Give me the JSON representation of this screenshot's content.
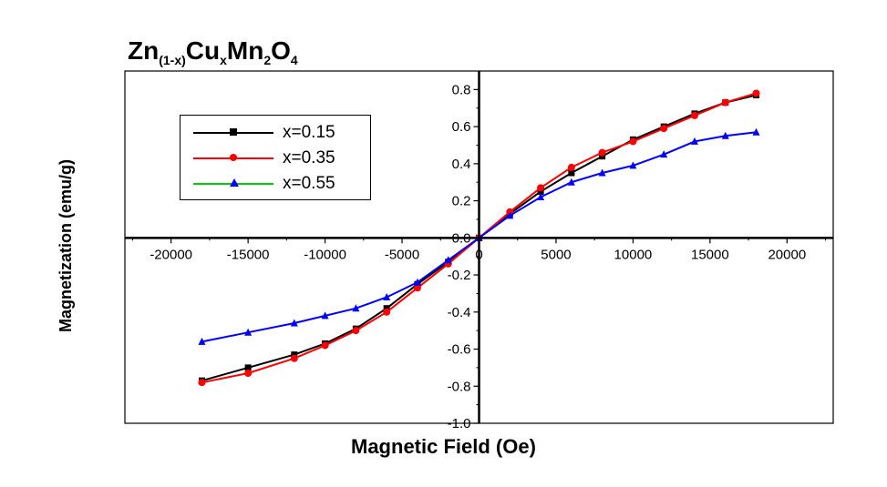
{
  "title": {
    "base1": "Zn",
    "sub1": "(1-x)",
    "base2": "Cu",
    "sub2": "x",
    "base3": "Mn",
    "sub3": "2",
    "base4": "O",
    "sub4": "4"
  },
  "chart_data": {
    "type": "line",
    "xlabel": "Magnetic Field (Oe)",
    "ylabel": "Magnetization (emu/g)",
    "xlim": [
      -23000,
      23000
    ],
    "ylim": [
      -1.0,
      0.9
    ],
    "x_ticks": [
      -20000,
      -15000,
      -10000,
      -5000,
      0,
      5000,
      10000,
      15000,
      20000
    ],
    "y_ticks": [
      -1.0,
      -0.8,
      -0.6,
      -0.4,
      -0.2,
      0.0,
      0.2,
      0.4,
      0.6,
      0.8
    ],
    "x_tick_labels": [
      "-20000",
      "-15000",
      "-10000",
      "-5000",
      "0",
      "5000",
      "10000",
      "15000",
      "20000"
    ],
    "y_tick_labels": [
      "-1.0",
      "-0.8",
      "-0.6",
      "-0.4",
      "-0.2",
      "0.0",
      "0.2",
      "0.4",
      "0.6",
      "0.8"
    ],
    "grid": false,
    "legend_position": "top-left",
    "series": [
      {
        "name": "x=0.15",
        "color": "#000000",
        "marker": "square",
        "x": [
          -18000,
          -15000,
          -12000,
          -10000,
          -8000,
          -6000,
          -4000,
          -2000,
          0,
          2000,
          4000,
          6000,
          8000,
          10000,
          12000,
          14000,
          16000,
          18000
        ],
        "y": [
          -0.77,
          -0.7,
          -0.63,
          -0.57,
          -0.49,
          -0.38,
          -0.25,
          -0.13,
          0.0,
          0.13,
          0.25,
          0.35,
          0.44,
          0.53,
          0.6,
          0.67,
          0.73,
          0.77
        ]
      },
      {
        "name": "x=0.35",
        "color": "#ff0000",
        "marker": "circle",
        "x": [
          -18000,
          -15000,
          -12000,
          -10000,
          -8000,
          -6000,
          -4000,
          -2000,
          0,
          2000,
          4000,
          6000,
          8000,
          10000,
          12000,
          14000,
          16000,
          18000
        ],
        "y": [
          -0.78,
          -0.73,
          -0.65,
          -0.58,
          -0.5,
          -0.4,
          -0.27,
          -0.14,
          0.0,
          0.14,
          0.27,
          0.38,
          0.46,
          0.52,
          0.59,
          0.66,
          0.73,
          0.78
        ]
      },
      {
        "name": "x=0.55",
        "color": "#0000ff",
        "marker": "triangle",
        "x": [
          -18000,
          -15000,
          -12000,
          -10000,
          -8000,
          -6000,
          -4000,
          -2000,
          0,
          2000,
          4000,
          6000,
          8000,
          10000,
          12000,
          14000,
          16000,
          18000
        ],
        "y": [
          -0.56,
          -0.51,
          -0.46,
          -0.42,
          -0.38,
          -0.32,
          -0.24,
          -0.12,
          0.0,
          0.12,
          0.22,
          0.3,
          0.35,
          0.39,
          0.45,
          0.52,
          0.55,
          0.57
        ]
      }
    ]
  }
}
